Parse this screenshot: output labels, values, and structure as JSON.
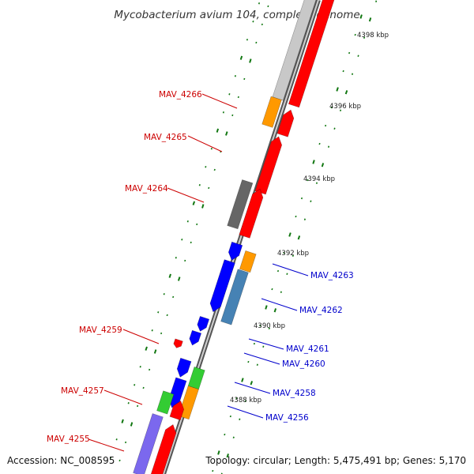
{
  "title": "Mycobacterium avium 104, complete genome",
  "footer": {
    "accession": "Accession: NC_008595",
    "topology": "Topology: circular; Length: 5,475,491 bp; Genes: 5,170"
  },
  "ticks": [
    "4398 kbp",
    "4396 kbp",
    "4394 kbp",
    "4392 kbp",
    "4390 kbp",
    "4388 kbp"
  ],
  "genes_left": [
    "MAV_4266",
    "MAV_4265",
    "MAV_4264",
    "MAV_4259",
    "MAV_4257",
    "MAV_4255"
  ],
  "genes_right": [
    "MAV_4263",
    "MAV_4262",
    "MAV_4261",
    "MAV_4260",
    "MAV_4258",
    "MAV_4256"
  ],
  "colors": {
    "red": "#ff0000",
    "blue": "#0000ff",
    "orange": "#ff9900",
    "green": "#33cc33",
    "steel_blue": "#4682b4",
    "grey": "#666666",
    "light_grey": "#c8c8c8",
    "purple": "#7b68ee",
    "label_red": "#cc0000",
    "label_blue": "#0000cc",
    "tick_green": "#117711"
  }
}
